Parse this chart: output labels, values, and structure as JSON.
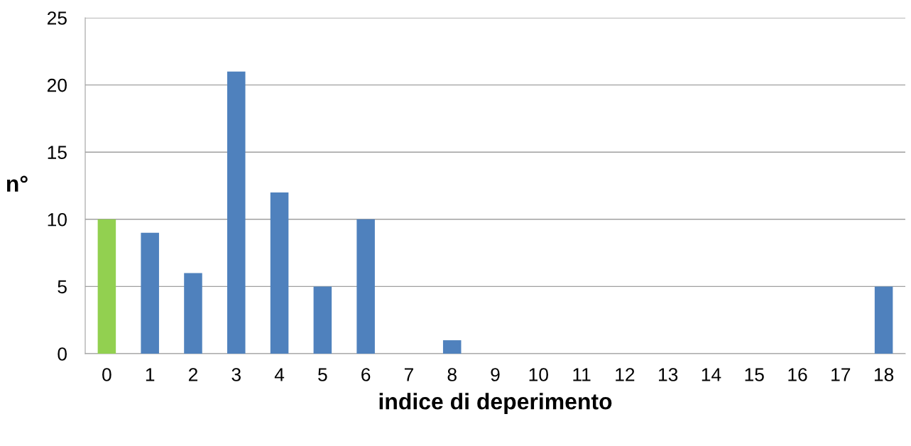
{
  "chart_data": {
    "type": "bar",
    "xlabel": "indice di deperimento",
    "ylabel": "n°",
    "categories": [
      "0",
      "1",
      "2",
      "3",
      "4",
      "5",
      "6",
      "7",
      "8",
      "9",
      "10",
      "11",
      "12",
      "13",
      "14",
      "15",
      "16",
      "17",
      "18"
    ],
    "values": [
      10,
      9,
      6,
      21,
      12,
      5,
      10,
      0,
      1,
      0,
      0,
      0,
      0,
      0,
      0,
      0,
      0,
      0,
      5
    ],
    "colors": [
      "#92d050",
      "#4f81bd",
      "#4f81bd",
      "#4f81bd",
      "#4f81bd",
      "#4f81bd",
      "#4f81bd",
      "#4f81bd",
      "#4f81bd",
      "#4f81bd",
      "#4f81bd",
      "#4f81bd",
      "#4f81bd",
      "#4f81bd",
      "#4f81bd",
      "#4f81bd",
      "#4f81bd",
      "#4f81bd",
      "#4f81bd"
    ],
    "ylim": [
      0,
      25
    ],
    "yticks": [
      0,
      5,
      10,
      15,
      20,
      25
    ],
    "grid": "y",
    "legend": false
  }
}
